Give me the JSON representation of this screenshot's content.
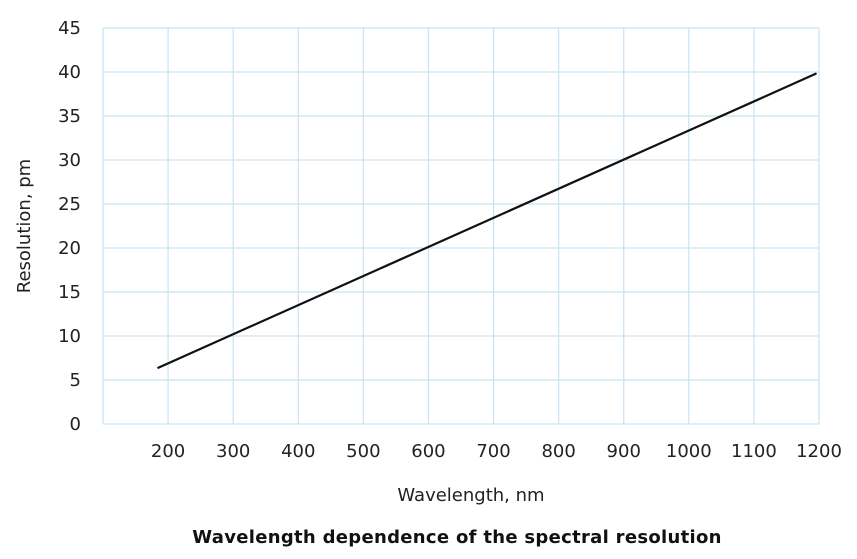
{
  "chart_data": {
    "type": "line",
    "title": "Wavelength dependence of the spectral resolution",
    "xlabel": "Wavelength, nm",
    "ylabel": "Resolution, pm",
    "xlim": [
      100,
      1200
    ],
    "ylim": [
      0,
      45
    ],
    "x_ticks": [
      200,
      300,
      400,
      500,
      600,
      700,
      800,
      900,
      1000,
      1100,
      1200
    ],
    "y_ticks": [
      0,
      5,
      10,
      15,
      20,
      25,
      30,
      35,
      40,
      45
    ],
    "grid": true,
    "legend": "none",
    "series": [
      {
        "x": [
          185,
          1195
        ],
        "y": [
          6.4,
          39.8
        ]
      }
    ]
  },
  "colors": {
    "grid": "#c9e3f2",
    "line": "#111111",
    "text": "#222222"
  }
}
